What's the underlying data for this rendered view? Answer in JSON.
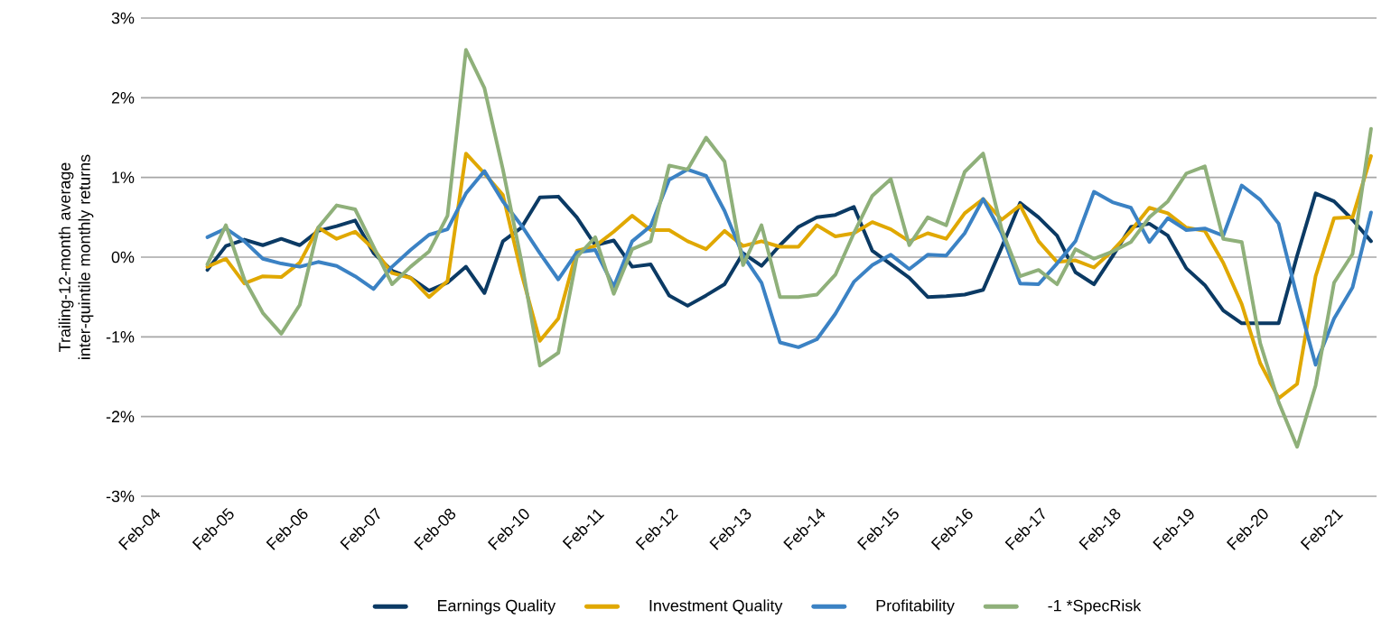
{
  "chart_data": {
    "type": "line",
    "ylabel": "Trailing-12-month average inter-quintile monthly returns",
    "categories": [
      "Feb-04",
      null,
      null,
      null,
      "Feb-05",
      null,
      null,
      null,
      "Feb-06",
      null,
      null,
      null,
      "Feb-07",
      null,
      null,
      null,
      "Feb-08",
      null,
      null,
      null,
      "Feb-10",
      null,
      null,
      null,
      "Feb-11",
      null,
      null,
      null,
      "Feb-12",
      null,
      null,
      null,
      "Feb-13",
      null,
      null,
      null,
      "Feb-14",
      null,
      null,
      null,
      "Feb-15",
      null,
      null,
      null,
      "Feb-16",
      null,
      null,
      null,
      "Feb-17",
      null,
      null,
      null,
      "Feb-18",
      null,
      null,
      null,
      "Feb-19",
      null,
      null,
      null,
      "Feb-20",
      null,
      null,
      null,
      "Feb-21",
      null,
      null
    ],
    "ylim": [
      -3,
      3
    ],
    "yticks": [
      {
        "value": -3,
        "label": "-3%"
      },
      {
        "value": -2,
        "label": "-2%"
      },
      {
        "value": -1,
        "label": "-1%"
      },
      {
        "value": 0,
        "label": "0%"
      },
      {
        "value": 1,
        "label": "1%"
      },
      {
        "value": 2,
        "label": "2%"
      },
      {
        "value": 3,
        "label": "3%"
      }
    ],
    "grid": "y",
    "legend": "bottom",
    "marker": "none",
    "line_style": "solid",
    "series": [
      {
        "name": "Earnings Quality",
        "color": "#0b3a64",
        "values": [
          null,
          null,
          null,
          -0.16,
          0.14,
          0.22,
          0.15,
          0.23,
          0.15,
          0.33,
          0.39,
          0.46,
          0.05,
          -0.17,
          -0.26,
          -0.42,
          -0.32,
          -0.12,
          -0.45,
          0.2,
          0.37,
          0.75,
          0.76,
          0.5,
          0.15,
          0.21,
          -0.12,
          -0.09,
          -0.48,
          -0.61,
          -0.48,
          -0.34,
          0.05,
          -0.11,
          0.15,
          0.38,
          0.5,
          0.53,
          0.63,
          0.08,
          -0.09,
          -0.26,
          -0.5,
          -0.49,
          -0.47,
          -0.41,
          0.12,
          0.68,
          0.5,
          0.27,
          -0.19,
          -0.34,
          0.01,
          0.38,
          0.42,
          0.27,
          -0.14,
          -0.35,
          -0.67,
          -0.83,
          -0.83,
          -0.83,
          0.02,
          0.8,
          0.7,
          0.47,
          0.2
        ]
      },
      {
        "name": "Investment Quality",
        "color": "#e0a800",
        "values": [
          null,
          null,
          null,
          -0.12,
          -0.02,
          -0.33,
          -0.24,
          -0.25,
          -0.07,
          0.37,
          0.23,
          0.32,
          0.1,
          -0.2,
          -0.26,
          -0.5,
          -0.3,
          1.3,
          1.05,
          0.78,
          -0.2,
          -1.05,
          -0.77,
          0.08,
          0.14,
          0.32,
          0.52,
          0.34,
          0.34,
          0.2,
          0.1,
          0.33,
          0.14,
          0.2,
          0.13,
          0.13,
          0.4,
          0.26,
          0.3,
          0.44,
          0.35,
          0.2,
          0.3,
          0.23,
          0.55,
          0.73,
          0.47,
          0.65,
          0.2,
          -0.06,
          -0.04,
          -0.13,
          0.08,
          0.33,
          0.62,
          0.55,
          0.37,
          0.33,
          -0.07,
          -0.59,
          -1.33,
          -1.77,
          -1.59,
          -0.24,
          0.49,
          0.5,
          1.27
        ]
      },
      {
        "name": "Profitability",
        "color": "#3b82c4",
        "values": [
          null,
          null,
          null,
          0.25,
          0.36,
          0.2,
          -0.02,
          -0.08,
          -0.12,
          -0.06,
          -0.11,
          -0.24,
          -0.4,
          -0.12,
          0.09,
          0.28,
          0.35,
          0.8,
          1.08,
          0.7,
          0.4,
          0.05,
          -0.28,
          0.06,
          0.09,
          -0.37,
          0.2,
          0.39,
          0.97,
          1.1,
          1.02,
          0.58,
          0.02,
          -0.32,
          -1.07,
          -1.13,
          -1.03,
          -0.71,
          -0.31,
          -0.1,
          0.03,
          -0.15,
          0.03,
          0.02,
          0.3,
          0.73,
          0.3,
          -0.33,
          -0.34,
          -0.08,
          0.2,
          0.82,
          0.69,
          0.62,
          0.19,
          0.49,
          0.34,
          0.36,
          0.27,
          0.9,
          0.72,
          0.42,
          -0.5,
          -1.35,
          -0.77,
          -0.38,
          0.56
        ]
      },
      {
        "name": "-1 *SpecRisk",
        "color": "#8fb07a",
        "values": [
          null,
          null,
          null,
          -0.09,
          0.4,
          -0.28,
          -0.7,
          -0.96,
          -0.6,
          0.37,
          0.65,
          0.6,
          0.13,
          -0.34,
          -0.12,
          0.07,
          0.52,
          2.6,
          2.12,
          1.1,
          -0.05,
          -1.36,
          -1.2,
          0.0,
          0.25,
          -0.46,
          0.1,
          0.2,
          1.15,
          1.1,
          1.5,
          1.2,
          -0.1,
          0.4,
          -0.5,
          -0.5,
          -0.47,
          -0.22,
          0.3,
          0.77,
          0.98,
          0.15,
          0.5,
          0.4,
          1.07,
          1.3,
          0.35,
          -0.24,
          -0.16,
          -0.34,
          0.1,
          -0.02,
          0.07,
          0.19,
          0.5,
          0.7,
          1.05,
          1.14,
          0.23,
          0.19,
          -1.08,
          -1.82,
          -2.38,
          -1.61,
          -0.32,
          0.04,
          1.61
        ]
      }
    ]
  }
}
